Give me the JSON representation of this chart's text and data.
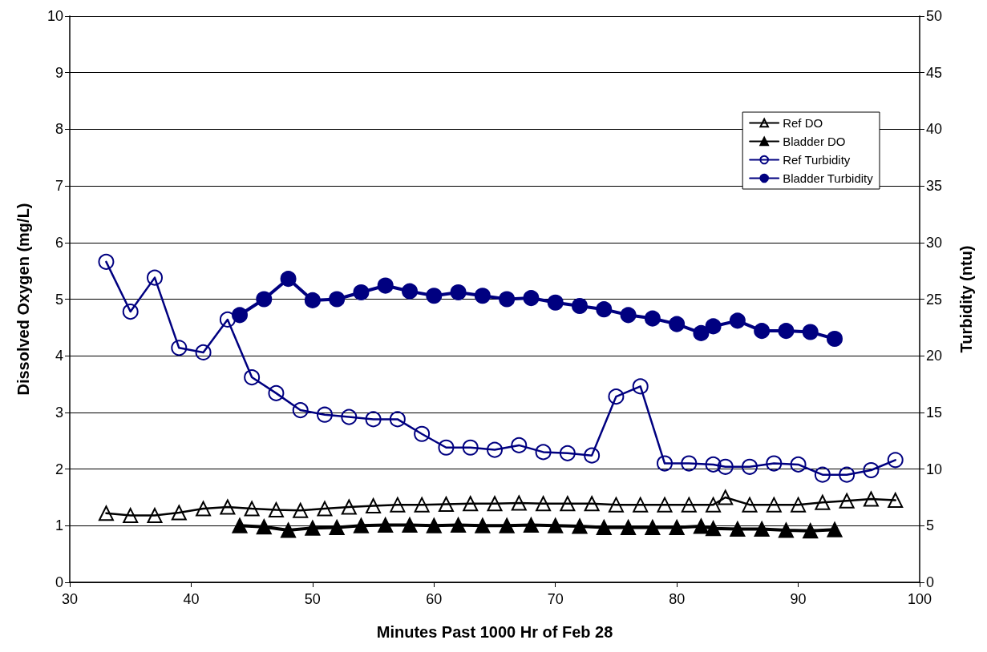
{
  "chart_data": {
    "type": "line",
    "xlabel": "Minutes Past 1000 Hr of Feb 28",
    "ylabel": "Dissolved Oxygen (mg/L)",
    "y2label": "Turbidity (ntu)",
    "xlim": [
      30,
      100
    ],
    "xticks": [
      30,
      40,
      50,
      60,
      70,
      80,
      90,
      100
    ],
    "ylim": [
      0,
      10
    ],
    "yticks": [
      0,
      1,
      2,
      3,
      4,
      5,
      6,
      7,
      8,
      9,
      10
    ],
    "y2lim": [
      0,
      50
    ],
    "y2ticks": [
      0,
      5,
      10,
      15,
      20,
      25,
      30,
      35,
      40,
      45,
      50
    ],
    "grid": "y",
    "legend": "top right",
    "line_style": "solid",
    "series": [
      {
        "name": "Ref DO",
        "color": "#000000",
        "marker": "triangle",
        "x": [
          33,
          35,
          37,
          39,
          41,
          43,
          45,
          47,
          49,
          51,
          53,
          55,
          57,
          59,
          61,
          63,
          65,
          67,
          69,
          71,
          73,
          75,
          77,
          79,
          81,
          83,
          84,
          86,
          88,
          90,
          92,
          94,
          96,
          98
        ],
        "values": [
          1.22,
          1.18,
          1.18,
          1.23,
          1.3,
          1.33,
          1.3,
          1.28,
          1.27,
          1.3,
          1.33,
          1.35,
          1.37,
          1.37,
          1.38,
          1.39,
          1.39,
          1.4,
          1.39,
          1.39,
          1.39,
          1.37,
          1.37,
          1.37,
          1.37,
          1.37,
          1.5,
          1.37,
          1.37,
          1.37,
          1.41,
          1.44,
          1.47,
          1.45
        ]
      },
      {
        "name": "Bladder DO",
        "color": "#000000",
        "marker": "triangle",
        "x": [
          44,
          46,
          48,
          50,
          52,
          54,
          56,
          58,
          60,
          62,
          64,
          66,
          68,
          70,
          72,
          74,
          76,
          78,
          80,
          82,
          83,
          85,
          87,
          89,
          91,
          93
        ],
        "values": [
          1.0,
          0.98,
          0.92,
          0.96,
          0.97,
          1.0,
          1.01,
          1.01,
          1.0,
          1.01,
          1.0,
          1.0,
          1.01,
          1.0,
          0.99,
          0.97,
          0.97,
          0.97,
          0.97,
          0.99,
          0.95,
          0.94,
          0.94,
          0.92,
          0.91,
          0.93
        ]
      },
      {
        "name": "Ref Turbidity",
        "color": "#000080",
        "marker": "circle",
        "axis": "y2",
        "x": [
          33,
          35,
          37,
          39,
          41,
          43,
          45,
          47,
          49,
          51,
          53,
          55,
          57,
          59,
          61,
          63,
          65,
          67,
          69,
          71,
          73,
          75,
          77,
          79,
          81,
          83,
          84,
          86,
          88,
          90,
          92,
          94,
          96,
          98
        ],
        "values": [
          28.3,
          23.9,
          26.9,
          20.7,
          20.3,
          23.2,
          18.1,
          16.7,
          15.2,
          14.8,
          14.6,
          14.4,
          14.4,
          13.1,
          11.9,
          11.9,
          11.7,
          12.1,
          11.5,
          11.4,
          11.2,
          16.4,
          17.3,
          10.5,
          10.5,
          10.4,
          10.2,
          10.2,
          10.5,
          10.4,
          9.5,
          9.5,
          9.9,
          10.8
        ]
      },
      {
        "name": "Bladder Turbidity",
        "color": "#000080",
        "marker": "circle",
        "axis": "y2",
        "x": [
          44,
          46,
          48,
          50,
          52,
          54,
          56,
          58,
          60,
          62,
          64,
          66,
          68,
          70,
          72,
          74,
          76,
          78,
          80,
          82,
          83,
          85,
          87,
          89,
          91,
          93
        ],
        "values": [
          23.6,
          25.0,
          26.8,
          24.9,
          25.0,
          25.6,
          26.2,
          25.7,
          25.3,
          25.6,
          25.3,
          25.0,
          25.1,
          24.7,
          24.4,
          24.1,
          23.6,
          23.3,
          22.8,
          22.0,
          22.6,
          23.1,
          22.2,
          22.2,
          22.1,
          21.5
        ]
      }
    ]
  }
}
